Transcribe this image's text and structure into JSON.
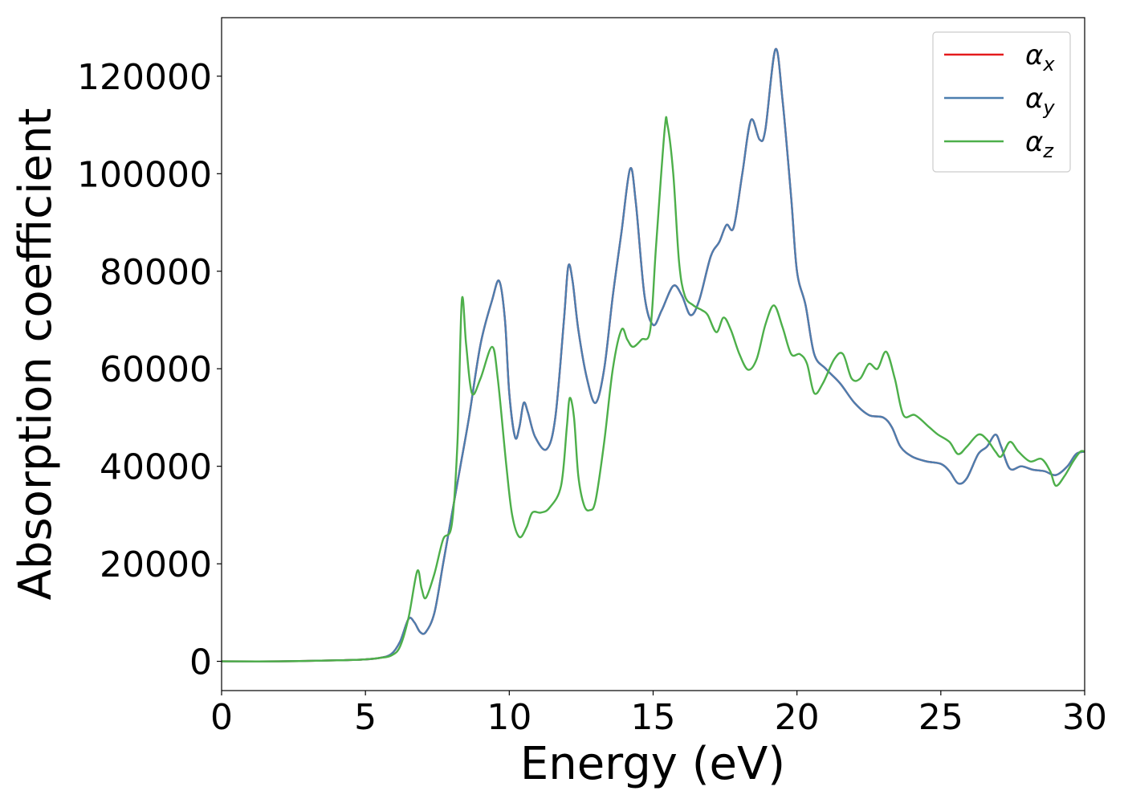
{
  "chart_data": {
    "type": "line",
    "xlabel": "Energy (eV)",
    "ylabel": "Absorption coefficient",
    "xlim": [
      0,
      30
    ],
    "ylim": [
      -6000,
      132000
    ],
    "xticks": [
      0,
      5,
      10,
      15,
      20,
      25,
      30
    ],
    "xtick_labels": [
      "0",
      "5",
      "10",
      "15",
      "20",
      "25",
      "30"
    ],
    "yticks": [
      0,
      20000,
      40000,
      60000,
      80000,
      100000,
      120000
    ],
    "ytick_labels": [
      "0",
      "20000",
      "40000",
      "60000",
      "80000",
      "100000",
      "120000"
    ],
    "grid": false,
    "legend_position": "top-right",
    "series": [
      {
        "name": "α_x",
        "legend_base": "α",
        "legend_sub": "x",
        "color": "#e41a1c",
        "points": [
          [
            0,
            0
          ],
          [
            2,
            0
          ],
          [
            4,
            200
          ],
          [
            5,
            400
          ],
          [
            5.5,
            700
          ],
          [
            5.9,
            1500
          ],
          [
            6.2,
            4000
          ],
          [
            6.5,
            8700
          ],
          [
            6.7,
            8000
          ],
          [
            6.9,
            6000
          ],
          [
            7.1,
            6000
          ],
          [
            7.4,
            10000
          ],
          [
            7.7,
            20000
          ],
          [
            8.0,
            30000
          ],
          [
            8.3,
            40000
          ],
          [
            8.6,
            50000
          ],
          [
            9.0,
            65000
          ],
          [
            9.4,
            74000
          ],
          [
            9.65,
            78000
          ],
          [
            9.85,
            70000
          ],
          [
            10.0,
            55000
          ],
          [
            10.2,
            46000
          ],
          [
            10.35,
            48000
          ],
          [
            10.5,
            53000
          ],
          [
            10.65,
            51000
          ],
          [
            10.9,
            46000
          ],
          [
            11.3,
            43500
          ],
          [
            11.6,
            50000
          ],
          [
            11.9,
            70000
          ],
          [
            12.05,
            81000
          ],
          [
            12.2,
            78000
          ],
          [
            12.4,
            68000
          ],
          [
            12.7,
            58000
          ],
          [
            13.0,
            53000
          ],
          [
            13.3,
            60000
          ],
          [
            13.6,
            75000
          ],
          [
            13.9,
            88000
          ],
          [
            14.2,
            101000
          ],
          [
            14.4,
            94000
          ],
          [
            14.7,
            75000
          ],
          [
            15.0,
            69000
          ],
          [
            15.3,
            72000
          ],
          [
            15.7,
            77000
          ],
          [
            16.0,
            75000
          ],
          [
            16.3,
            71000
          ],
          [
            16.6,
            74000
          ],
          [
            17.0,
            83000
          ],
          [
            17.3,
            86000
          ],
          [
            17.55,
            89500
          ],
          [
            17.8,
            89000
          ],
          [
            18.1,
            100000
          ],
          [
            18.4,
            111000
          ],
          [
            18.7,
            107000
          ],
          [
            18.9,
            109000
          ],
          [
            19.25,
            125500
          ],
          [
            19.5,
            115000
          ],
          [
            19.8,
            95000
          ],
          [
            20.0,
            80000
          ],
          [
            20.3,
            73000
          ],
          [
            20.6,
            63000
          ],
          [
            21.0,
            60000
          ],
          [
            21.5,
            57000
          ],
          [
            22.0,
            53000
          ],
          [
            22.5,
            50500
          ],
          [
            23.0,
            50000
          ],
          [
            23.3,
            48000
          ],
          [
            23.6,
            44000
          ],
          [
            24.0,
            42000
          ],
          [
            24.5,
            41000
          ],
          [
            25.0,
            40500
          ],
          [
            25.3,
            39000
          ],
          [
            25.6,
            36500
          ],
          [
            25.9,
            37500
          ],
          [
            26.3,
            42500
          ],
          [
            26.6,
            44000
          ],
          [
            26.9,
            46500
          ],
          [
            27.1,
            44000
          ],
          [
            27.4,
            39500
          ],
          [
            27.8,
            40000
          ],
          [
            28.2,
            39300
          ],
          [
            28.6,
            39000
          ],
          [
            29.0,
            38200
          ],
          [
            29.4,
            40000
          ],
          [
            29.7,
            42500
          ],
          [
            30.0,
            43000
          ]
        ]
      },
      {
        "name": "α_y",
        "legend_base": "α",
        "legend_sub": "y",
        "color": "#4c7eaf",
        "points": [
          [
            0,
            0
          ],
          [
            2,
            0
          ],
          [
            4,
            200
          ],
          [
            5,
            400
          ],
          [
            5.5,
            700
          ],
          [
            5.9,
            1500
          ],
          [
            6.2,
            4000
          ],
          [
            6.5,
            8700
          ],
          [
            6.7,
            8000
          ],
          [
            6.9,
            6000
          ],
          [
            7.1,
            6000
          ],
          [
            7.4,
            10000
          ],
          [
            7.7,
            20000
          ],
          [
            8.0,
            30000
          ],
          [
            8.3,
            40000
          ],
          [
            8.6,
            50000
          ],
          [
            9.0,
            65000
          ],
          [
            9.4,
            74000
          ],
          [
            9.65,
            78000
          ],
          [
            9.85,
            70000
          ],
          [
            10.0,
            55000
          ],
          [
            10.2,
            46000
          ],
          [
            10.35,
            48000
          ],
          [
            10.5,
            53000
          ],
          [
            10.65,
            51000
          ],
          [
            10.9,
            46000
          ],
          [
            11.3,
            43500
          ],
          [
            11.6,
            50000
          ],
          [
            11.9,
            70000
          ],
          [
            12.05,
            81000
          ],
          [
            12.2,
            78000
          ],
          [
            12.4,
            68000
          ],
          [
            12.7,
            58000
          ],
          [
            13.0,
            53000
          ],
          [
            13.3,
            60000
          ],
          [
            13.6,
            75000
          ],
          [
            13.9,
            88000
          ],
          [
            14.2,
            101000
          ],
          [
            14.4,
            94000
          ],
          [
            14.7,
            75000
          ],
          [
            15.0,
            69000
          ],
          [
            15.3,
            72000
          ],
          [
            15.7,
            77000
          ],
          [
            16.0,
            75000
          ],
          [
            16.3,
            71000
          ],
          [
            16.6,
            74000
          ],
          [
            17.0,
            83000
          ],
          [
            17.3,
            86000
          ],
          [
            17.55,
            89500
          ],
          [
            17.8,
            89000
          ],
          [
            18.1,
            100000
          ],
          [
            18.4,
            111000
          ],
          [
            18.7,
            107000
          ],
          [
            18.9,
            109000
          ],
          [
            19.25,
            125500
          ],
          [
            19.5,
            115000
          ],
          [
            19.8,
            95000
          ],
          [
            20.0,
            80000
          ],
          [
            20.3,
            73000
          ],
          [
            20.6,
            63000
          ],
          [
            21.0,
            60000
          ],
          [
            21.5,
            57000
          ],
          [
            22.0,
            53000
          ],
          [
            22.5,
            50500
          ],
          [
            23.0,
            50000
          ],
          [
            23.3,
            48000
          ],
          [
            23.6,
            44000
          ],
          [
            24.0,
            42000
          ],
          [
            24.5,
            41000
          ],
          [
            25.0,
            40500
          ],
          [
            25.3,
            39000
          ],
          [
            25.6,
            36500
          ],
          [
            25.9,
            37500
          ],
          [
            26.3,
            42500
          ],
          [
            26.6,
            44000
          ],
          [
            26.9,
            46500
          ],
          [
            27.1,
            44000
          ],
          [
            27.4,
            39500
          ],
          [
            27.8,
            40000
          ],
          [
            28.2,
            39300
          ],
          [
            28.6,
            39000
          ],
          [
            29.0,
            38200
          ],
          [
            29.4,
            40000
          ],
          [
            29.7,
            42500
          ],
          [
            30.0,
            43000
          ]
        ]
      },
      {
        "name": "α_z",
        "legend_base": "α",
        "legend_sub": "z",
        "color": "#4daf4a",
        "points": [
          [
            0,
            0
          ],
          [
            2,
            0
          ],
          [
            4,
            200
          ],
          [
            5,
            400
          ],
          [
            5.5,
            700
          ],
          [
            5.9,
            1200
          ],
          [
            6.2,
            3000
          ],
          [
            6.5,
            9000
          ],
          [
            6.8,
            18500
          ],
          [
            6.95,
            15000
          ],
          [
            7.1,
            13000
          ],
          [
            7.4,
            18000
          ],
          [
            7.7,
            25000
          ],
          [
            8.0,
            28000
          ],
          [
            8.2,
            45000
          ],
          [
            8.35,
            74000
          ],
          [
            8.5,
            65000
          ],
          [
            8.7,
            55000
          ],
          [
            9.0,
            58000
          ],
          [
            9.4,
            64500
          ],
          [
            9.6,
            58000
          ],
          [
            9.9,
            40000
          ],
          [
            10.1,
            30000
          ],
          [
            10.35,
            25500
          ],
          [
            10.6,
            27500
          ],
          [
            10.8,
            30500
          ],
          [
            11.1,
            30500
          ],
          [
            11.4,
            31500
          ],
          [
            11.8,
            36000
          ],
          [
            12.0,
            48000
          ],
          [
            12.1,
            54000
          ],
          [
            12.25,
            50000
          ],
          [
            12.4,
            38000
          ],
          [
            12.6,
            32000
          ],
          [
            12.8,
            31000
          ],
          [
            13.0,
            33000
          ],
          [
            13.3,
            45000
          ],
          [
            13.6,
            60000
          ],
          [
            13.9,
            68000
          ],
          [
            14.1,
            66000
          ],
          [
            14.3,
            64500
          ],
          [
            14.6,
            66000
          ],
          [
            14.9,
            68000
          ],
          [
            15.1,
            85000
          ],
          [
            15.4,
            109000
          ],
          [
            15.5,
            110000
          ],
          [
            15.7,
            100000
          ],
          [
            15.9,
            82000
          ],
          [
            16.1,
            75000
          ],
          [
            16.4,
            73000
          ],
          [
            16.7,
            72000
          ],
          [
            16.9,
            71000
          ],
          [
            17.2,
            67500
          ],
          [
            17.45,
            70500
          ],
          [
            17.7,
            68000
          ],
          [
            18.0,
            63000
          ],
          [
            18.3,
            59800
          ],
          [
            18.6,
            62000
          ],
          [
            18.9,
            69000
          ],
          [
            19.2,
            73000
          ],
          [
            19.5,
            68500
          ],
          [
            19.8,
            63000
          ],
          [
            20.1,
            63000
          ],
          [
            20.35,
            61000
          ],
          [
            20.6,
            55000
          ],
          [
            20.9,
            57000
          ],
          [
            21.3,
            62000
          ],
          [
            21.6,
            63000
          ],
          [
            21.9,
            58000
          ],
          [
            22.2,
            58000
          ],
          [
            22.5,
            61000
          ],
          [
            22.8,
            60000
          ],
          [
            23.1,
            63500
          ],
          [
            23.4,
            58000
          ],
          [
            23.7,
            50500
          ],
          [
            24.1,
            50500
          ],
          [
            24.6,
            48000
          ],
          [
            24.9,
            46500
          ],
          [
            25.3,
            45000
          ],
          [
            25.6,
            42500
          ],
          [
            25.9,
            44000
          ],
          [
            26.3,
            46500
          ],
          [
            26.6,
            45500
          ],
          [
            26.9,
            43000
          ],
          [
            27.1,
            42000
          ],
          [
            27.4,
            45000
          ],
          [
            27.7,
            43000
          ],
          [
            28.1,
            41000
          ],
          [
            28.5,
            41500
          ],
          [
            28.8,
            39000
          ],
          [
            29.0,
            36000
          ],
          [
            29.3,
            38000
          ],
          [
            29.6,
            41000
          ],
          [
            29.85,
            43000
          ],
          [
            30.0,
            43000
          ]
        ]
      }
    ]
  }
}
